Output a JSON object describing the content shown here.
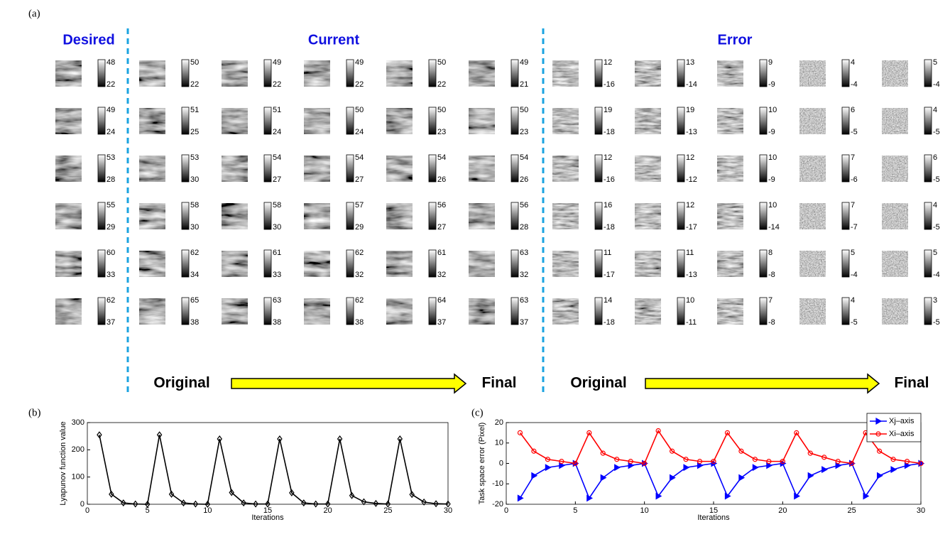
{
  "figure_a": {
    "label": "(a)",
    "headings": {
      "desired": "Desired",
      "current": "Current",
      "error": "Error"
    },
    "desired": [
      [
        48,
        22
      ],
      [
        49,
        24
      ],
      [
        53,
        28
      ],
      [
        55,
        29
      ],
      [
        60,
        33
      ],
      [
        62,
        37
      ]
    ],
    "current": [
      [
        [
          50,
          22
        ],
        [
          49,
          22
        ],
        [
          49,
          22
        ],
        [
          50,
          22
        ],
        [
          49,
          21
        ]
      ],
      [
        [
          51,
          25
        ],
        [
          51,
          24
        ],
        [
          50,
          24
        ],
        [
          50,
          23
        ],
        [
          50,
          23
        ]
      ],
      [
        [
          53,
          30
        ],
        [
          54,
          27
        ],
        [
          54,
          27
        ],
        [
          54,
          26
        ],
        [
          54,
          26
        ]
      ],
      [
        [
          58,
          30
        ],
        [
          58,
          30
        ],
        [
          57,
          29
        ],
        [
          56,
          27
        ],
        [
          56,
          28
        ]
      ],
      [
        [
          62,
          34
        ],
        [
          61,
          33
        ],
        [
          62,
          32
        ],
        [
          61,
          32
        ],
        [
          63,
          32
        ]
      ],
      [
        [
          65,
          38
        ],
        [
          63,
          38
        ],
        [
          62,
          38
        ],
        [
          64,
          37
        ],
        [
          63,
          37
        ]
      ]
    ],
    "error": [
      [
        [
          12,
          -16
        ],
        [
          13,
          -14
        ],
        [
          9,
          -9
        ],
        [
          4,
          -4
        ],
        [
          5,
          -4
        ]
      ],
      [
        [
          19,
          -18
        ],
        [
          19,
          -13
        ],
        [
          10,
          -9
        ],
        [
          6,
          -5
        ],
        [
          4,
          -5
        ]
      ],
      [
        [
          12,
          -16
        ],
        [
          12,
          -12
        ],
        [
          10,
          -9
        ],
        [
          7,
          -6
        ],
        [
          6,
          -5
        ]
      ],
      [
        [
          16,
          -18
        ],
        [
          12,
          -17
        ],
        [
          10,
          -14
        ],
        [
          7,
          -7
        ],
        [
          4,
          -5
        ]
      ],
      [
        [
          11,
          -17
        ],
        [
          11,
          -13
        ],
        [
          8,
          -8
        ],
        [
          5,
          -4
        ],
        [
          5,
          -4
        ]
      ],
      [
        [
          14,
          -18
        ],
        [
          10,
          -11
        ],
        [
          7,
          -8
        ],
        [
          4,
          -5
        ],
        [
          3,
          -5
        ]
      ]
    ],
    "current_arrow": {
      "start": "Original",
      "end": "Final"
    },
    "error_arrow": {
      "start": "Original",
      "end": "Final"
    }
  },
  "chart_data": [
    {
      "type": "line",
      "panel_label": "(b)",
      "xlabel": "Iterations",
      "ylabel": "Lyapunov function value",
      "x": [
        1,
        2,
        3,
        4,
        5,
        6,
        7,
        8,
        9,
        10,
        11,
        12,
        13,
        14,
        15,
        16,
        17,
        18,
        19,
        20,
        21,
        22,
        23,
        24,
        25,
        26,
        27,
        28,
        29,
        30
      ],
      "series": [
        {
          "color": "#000000",
          "marker": "diamond",
          "values": [
            255,
            37,
            5,
            1,
            0,
            255,
            37,
            5,
            1,
            0,
            240,
            43,
            5,
            1,
            1,
            240,
            42,
            5,
            1,
            1,
            240,
            32,
            9,
            3,
            1,
            240,
            36,
            8,
            2,
            1
          ]
        }
      ],
      "xlim": [
        0,
        30
      ],
      "xticks": [
        0,
        5,
        10,
        15,
        20,
        25,
        30
      ],
      "ylim": [
        0,
        300
      ],
      "yticks": [
        0,
        100,
        200,
        300
      ]
    },
    {
      "type": "line",
      "panel_label": "(c)",
      "xlabel": "Iterations",
      "ylabel": "Task space error (Pixel)",
      "legend": "upper right",
      "x": [
        1,
        2,
        3,
        4,
        5,
        6,
        7,
        8,
        9,
        10,
        11,
        12,
        13,
        14,
        15,
        16,
        17,
        18,
        19,
        20,
        21,
        22,
        23,
        24,
        25,
        26,
        27,
        28,
        29,
        30
      ],
      "series": [
        {
          "name": "Xj–axis",
          "color": "#0000ff",
          "marker": "triangle",
          "values": [
            -17,
            -6,
            -2,
            -1,
            0,
            -17,
            -7,
            -2,
            -1,
            0,
            -16,
            -7,
            -2,
            -1,
            0,
            -16,
            -7,
            -2,
            -1,
            0,
            -16,
            -6,
            -3,
            -1,
            0,
            -16,
            -6,
            -3,
            -1,
            0
          ]
        },
        {
          "name": "Xi–axis",
          "color": "#ff0000",
          "marker": "circle",
          "values": [
            15,
            6,
            2,
            1,
            0,
            15,
            5,
            2,
            1,
            0,
            16,
            6,
            2,
            1,
            1,
            15,
            6,
            2,
            1,
            1,
            15,
            5,
            3,
            1,
            0,
            15,
            6,
            2,
            1,
            0
          ]
        }
      ],
      "xlim": [
        0,
        30
      ],
      "xticks": [
        0,
        5,
        10,
        15,
        20,
        25,
        30
      ],
      "ylim": [
        -20,
        20
      ],
      "yticks": [
        -20,
        -10,
        0,
        10,
        20
      ]
    }
  ]
}
